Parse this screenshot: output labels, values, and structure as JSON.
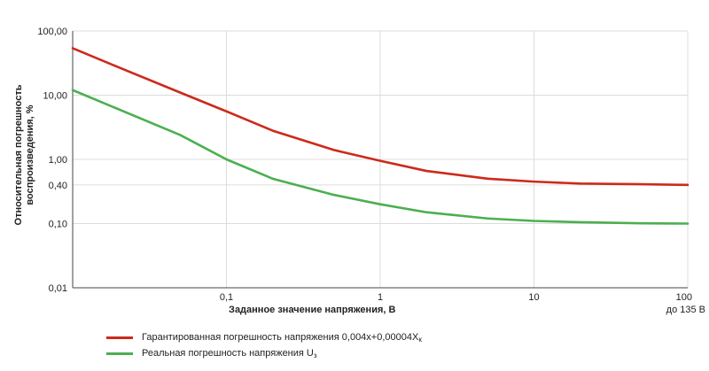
{
  "chart_data": {
    "type": "line",
    "x_scale": "log",
    "y_scale": "log",
    "xlim": [
      0.01,
      100
    ],
    "ylim": [
      0.01,
      100
    ],
    "grid": true,
    "xlabel": "Заданное значение напряжения, В",
    "ylabel_line1": "Относительная погрешность",
    "ylabel_line2": "воспроизведения, %",
    "x_ticks": [
      {
        "value": 0.1,
        "label": "0,1"
      },
      {
        "value": 1,
        "label": "1"
      },
      {
        "value": 10,
        "label": "10"
      },
      {
        "value": 100,
        "label": "100"
      }
    ],
    "x_tick_note": "до 135 В",
    "y_ticks": [
      {
        "value": 0.01,
        "label": "0,01"
      },
      {
        "value": 0.1,
        "label": "0,10"
      },
      {
        "value": 0.4,
        "label": "0,40"
      },
      {
        "value": 1,
        "label": "1,00"
      },
      {
        "value": 10,
        "label": "10,00"
      },
      {
        "value": 100,
        "label": "100,00"
      }
    ],
    "series": [
      {
        "name": "Гарантированная погрешность напряжения 0,004x+0,00004X",
        "name_sub": "к",
        "color": "#cc2a1a",
        "x": [
          0.01,
          0.02,
          0.05,
          0.1,
          0.2,
          0.5,
          1,
          2,
          5,
          10,
          20,
          50,
          100
        ],
        "y": [
          54,
          27,
          11,
          5.6,
          2.8,
          1.4,
          0.95,
          0.66,
          0.5,
          0.45,
          0.42,
          0.41,
          0.4
        ]
      },
      {
        "name": "Реальная погрешность напряжения U",
        "name_sub": "з",
        "color": "#4caf50",
        "x": [
          0.01,
          0.02,
          0.05,
          0.1,
          0.2,
          0.5,
          1,
          2,
          5,
          10,
          20,
          50,
          100
        ],
        "y": [
          12,
          6,
          2.4,
          1.0,
          0.5,
          0.28,
          0.2,
          0.15,
          0.12,
          0.11,
          0.105,
          0.101,
          0.1
        ]
      }
    ]
  }
}
